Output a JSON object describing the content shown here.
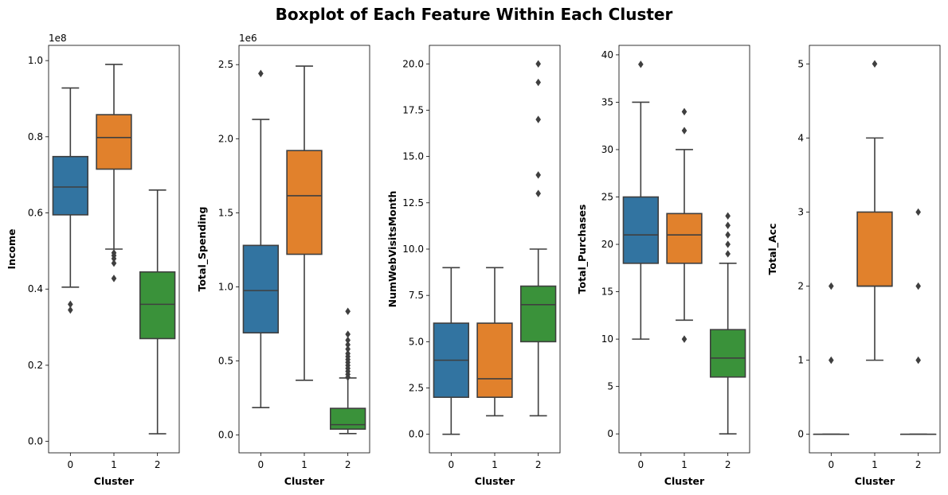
{
  "figure_title": "Boxplot of Each Feature Within Each Cluster",
  "chart_data": [
    {
      "type": "box",
      "xlabel": "Cluster",
      "ylabel": "Income",
      "categories": [
        "0",
        "1",
        "2"
      ],
      "ylim": [
        -0.03,
        1.04
      ],
      "yticks": [
        0.0,
        0.2,
        0.4,
        0.6,
        0.8,
        1.0
      ],
      "ytick_labels": [
        "0.0",
        "0.2",
        "0.4",
        "0.6",
        "0.8",
        "1.0"
      ],
      "offset_text": "1e8",
      "boxes": [
        {
          "category": "0",
          "whislo": 0.405,
          "q1": 0.595,
          "med": 0.668,
          "q3": 0.748,
          "whishi": 0.928,
          "fliers": [
            0.36,
            0.345
          ],
          "color": "#3274a1"
        },
        {
          "category": "1",
          "whislo": 0.505,
          "q1": 0.715,
          "med": 0.798,
          "q3": 0.858,
          "whishi": 0.99,
          "fliers": [
            0.495,
            0.488,
            0.48,
            0.468,
            0.428
          ],
          "color": "#e1812c"
        },
        {
          "category": "2",
          "whislo": 0.02,
          "q1": 0.27,
          "med": 0.36,
          "q3": 0.445,
          "whishi": 0.66,
          "fliers": [],
          "color": "#3a923a"
        }
      ]
    },
    {
      "type": "box",
      "xlabel": "Cluster",
      "ylabel": "Total_Spending",
      "categories": [
        "0",
        "1",
        "2"
      ],
      "ylim": [
        -0.12,
        2.63
      ],
      "yticks": [
        0.0,
        0.5,
        1.0,
        1.5,
        2.0,
        2.5
      ],
      "ytick_labels": [
        "0.0",
        "0.5",
        "1.0",
        "1.5",
        "2.0",
        "2.5"
      ],
      "offset_text": "1e6",
      "boxes": [
        {
          "category": "0",
          "whislo": 0.185,
          "q1": 0.69,
          "med": 0.975,
          "q3": 1.28,
          "whishi": 2.13,
          "fliers": [
            2.44
          ],
          "color": "#3274a1"
        },
        {
          "category": "1",
          "whislo": 0.37,
          "q1": 1.22,
          "med": 1.615,
          "q3": 1.92,
          "whishi": 2.49,
          "fliers": [],
          "color": "#e1812c"
        },
        {
          "category": "2",
          "whislo": 0.01,
          "q1": 0.04,
          "med": 0.07,
          "q3": 0.18,
          "whishi": 0.385,
          "fliers": [
            0.39,
            0.41,
            0.43,
            0.45,
            0.47,
            0.49,
            0.51,
            0.53,
            0.55,
            0.58,
            0.61,
            0.64,
            0.68,
            0.835
          ],
          "color": "#3a923a"
        }
      ]
    },
    {
      "type": "box",
      "xlabel": "Cluster",
      "ylabel": "NumWebVisitsMonth",
      "categories": [
        "0",
        "1",
        "2"
      ],
      "ylim": [
        -1.0,
        21.0
      ],
      "yticks": [
        0.0,
        2.5,
        5.0,
        7.5,
        10.0,
        12.5,
        15.0,
        17.5,
        20.0
      ],
      "ytick_labels": [
        "0.0",
        "2.5",
        "5.0",
        "7.5",
        "10.0",
        "12.5",
        "15.0",
        "17.5",
        "20.0"
      ],
      "offset_text": "",
      "boxes": [
        {
          "category": "0",
          "whislo": 0,
          "q1": 2,
          "med": 4,
          "q3": 6,
          "whishi": 9,
          "fliers": [],
          "color": "#3274a1"
        },
        {
          "category": "1",
          "whislo": 1,
          "q1": 2,
          "med": 3,
          "q3": 6,
          "whishi": 9,
          "fliers": [],
          "color": "#e1812c"
        },
        {
          "category": "2",
          "whislo": 1,
          "q1": 5,
          "med": 7,
          "q3": 8,
          "whishi": 10,
          "fliers": [
            13,
            14,
            17,
            19,
            20
          ],
          "color": "#3a923a"
        }
      ]
    },
    {
      "type": "box",
      "xlabel": "Cluster",
      "ylabel": "Total_Purchases",
      "categories": [
        "0",
        "1",
        "2"
      ],
      "ylim": [
        -2.0,
        41.0
      ],
      "yticks": [
        0,
        5,
        10,
        15,
        20,
        25,
        30,
        35,
        40
      ],
      "ytick_labels": [
        "0",
        "5",
        "10",
        "15",
        "20",
        "25",
        "30",
        "35",
        "40"
      ],
      "offset_text": "",
      "boxes": [
        {
          "category": "0",
          "whislo": 10,
          "q1": 18,
          "med": 21,
          "q3": 25,
          "whishi": 35,
          "fliers": [
            39
          ],
          "color": "#3274a1"
        },
        {
          "category": "1",
          "whislo": 12,
          "q1": 18,
          "med": 21,
          "q3": 23.25,
          "whishi": 30,
          "fliers": [
            10,
            32,
            34
          ],
          "color": "#e1812c"
        },
        {
          "category": "2",
          "whislo": 0,
          "q1": 6,
          "med": 8,
          "q3": 11,
          "whishi": 18,
          "fliers": [
            19,
            20,
            21,
            22,
            23
          ],
          "color": "#3a923a"
        }
      ]
    },
    {
      "type": "box",
      "xlabel": "Cluster",
      "ylabel": "Total_Acc",
      "categories": [
        "0",
        "1",
        "2"
      ],
      "ylim": [
        -0.25,
        5.25
      ],
      "yticks": [
        0,
        1,
        2,
        3,
        4,
        5
      ],
      "ytick_labels": [
        "0",
        "1",
        "2",
        "3",
        "4",
        "5"
      ],
      "offset_text": "",
      "boxes": [
        {
          "category": "0",
          "whislo": 0,
          "q1": 0,
          "med": 0,
          "q3": 0,
          "whishi": 0,
          "fliers": [
            1,
            2
          ],
          "color": "#3274a1"
        },
        {
          "category": "1",
          "whislo": 1,
          "q1": 2,
          "med": 2,
          "q3": 3,
          "whishi": 4,
          "fliers": [
            5
          ],
          "color": "#e1812c"
        },
        {
          "category": "2",
          "whislo": 0,
          "q1": 0,
          "med": 0,
          "q3": 0,
          "whishi": 0,
          "fliers": [
            1,
            2,
            3
          ],
          "color": "#3a923a"
        }
      ]
    }
  ]
}
